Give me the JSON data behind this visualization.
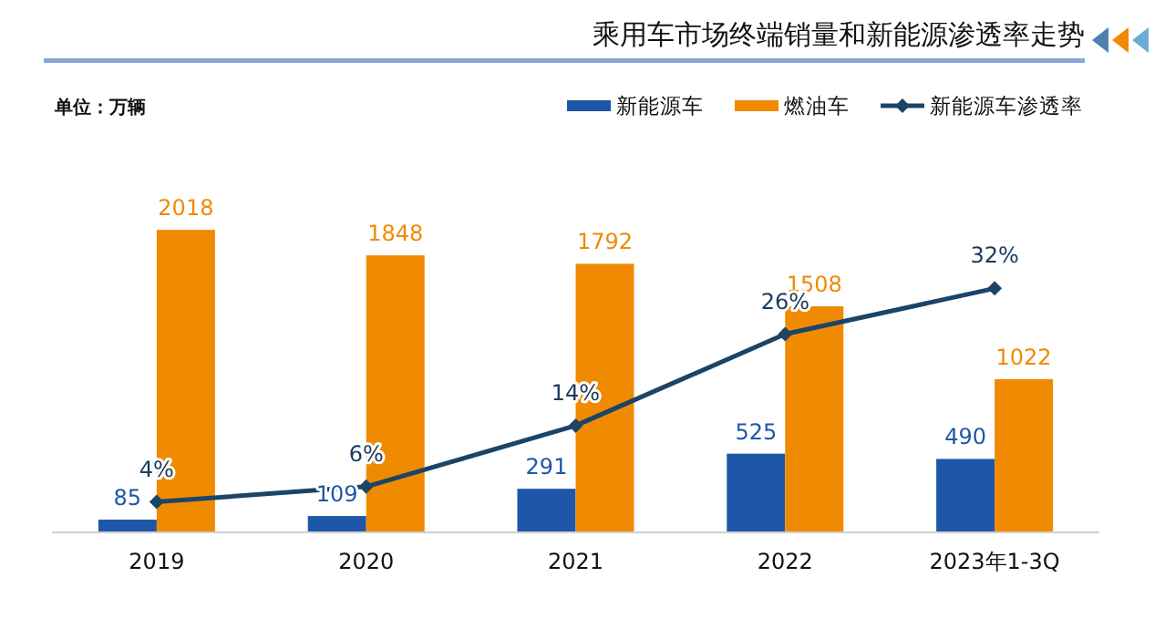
{
  "chart_data": {
    "type": "bar",
    "title": "乘用车市场终端销量和新能源渗透率走势",
    "annotations": [
      "单位：万辆"
    ],
    "categories": [
      "2019",
      "2020",
      "2021",
      "2022",
      "2023年1-3Q"
    ],
    "legend": "top right",
    "marker": "diamond",
    "series": [
      {
        "name": "新能源车",
        "color": "#1f57a8",
        "values": [
          85,
          109,
          291,
          525,
          490
        ],
        "value_labels": [
          "85",
          "109",
          "291",
          "525",
          "490"
        ]
      },
      {
        "name": "燃油车",
        "color": "#f08a00",
        "values": [
          2018,
          1848,
          1792,
          1508,
          1022
        ],
        "value_labels": [
          "2018",
          "1848",
          "1792",
          "1508",
          "1022"
        ]
      },
      {
        "name": "新能源车渗透率",
        "type": "line",
        "axis": "y2",
        "color": "#1b4466",
        "values": [
          4,
          6,
          14,
          26,
          32
        ],
        "value_labels": [
          "4%",
          "6%",
          "14%",
          "26%",
          "32%"
        ]
      }
    ]
  }
}
